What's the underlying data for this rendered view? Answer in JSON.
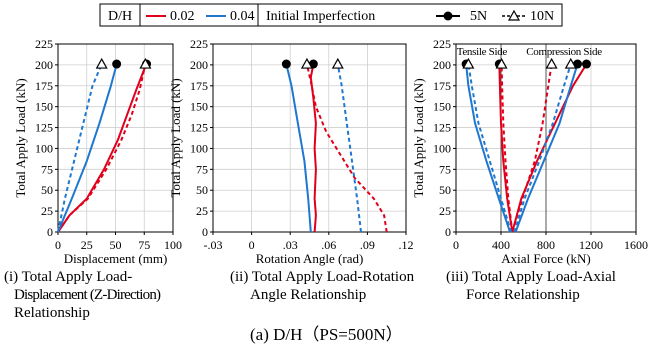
{
  "legend": {
    "dh_label": "D/H",
    "series": [
      {
        "name": "0.02",
        "color": "#e0001b"
      },
      {
        "name": "0.04",
        "color": "#1f77d0"
      }
    ],
    "imperfection_label": "Initial Imperfection",
    "markers": [
      {
        "name": "5N",
        "line": "solid",
        "marker": "filled-circle"
      },
      {
        "name": "10N",
        "line": "dashed",
        "marker": "open-triangle"
      }
    ]
  },
  "panel_titles": [
    [
      "(i) Total Apply Load-",
      "Displacement (Z-Direction)",
      "Relationship"
    ],
    [
      "(ii) Total Apply Load-Rotation",
      "Angle Relationship"
    ],
    [
      "(iii) Total Apply Load-Axial",
      "Force Relationship"
    ]
  ],
  "figure_caption": "(a) D/H（PS=500N）",
  "chart_data": [
    {
      "type": "line",
      "xlabel": "Displacement (mm)",
      "ylabel": "Total Apply Load (kN)",
      "xlim": [
        0,
        100
      ],
      "ylim": [
        0,
        225
      ],
      "xticks": [
        0,
        25,
        50,
        75,
        100
      ],
      "yticks": [
        0,
        25,
        50,
        75,
        100,
        125,
        150,
        175,
        200,
        225
      ],
      "grid": true,
      "vlines": [],
      "annotations": [],
      "series": [
        {
          "name": "0.02",
          "imperfection": "5N",
          "color": "#e0001b",
          "dash": false,
          "marker": "circle",
          "x": [
            0,
            10,
            25,
            40,
            52,
            60,
            68,
            75,
            77
          ],
          "y": [
            0,
            20,
            40,
            75,
            110,
            140,
            170,
            195,
            201
          ]
        },
        {
          "name": "0.02",
          "imperfection": "10N",
          "color": "#e0001b",
          "dash": true,
          "marker": "triangle",
          "x": [
            0,
            10,
            26,
            42,
            55,
            64,
            71,
            75,
            76
          ],
          "y": [
            0,
            20,
            40,
            75,
            110,
            140,
            170,
            195,
            201
          ]
        },
        {
          "name": "0.04",
          "imperfection": "5N",
          "color": "#1f77d0",
          "dash": false,
          "marker": "circle",
          "x": [
            0,
            12,
            25,
            36,
            46,
            51
          ],
          "y": [
            0,
            40,
            85,
            130,
            175,
            201
          ]
        },
        {
          "name": "0.04",
          "imperfection": "10N",
          "color": "#1f77d0",
          "dash": true,
          "marker": "triangle",
          "x": [
            0,
            6,
            14,
            22,
            30,
            38
          ],
          "y": [
            0,
            40,
            85,
            130,
            175,
            201
          ]
        }
      ]
    },
    {
      "type": "line",
      "xlabel": "Rotation Angle (rad)",
      "ylabel": "Total Apply Load (kN)",
      "xlim": [
        -0.03,
        0.12
      ],
      "ylim": [
        0,
        225
      ],
      "xticks": [
        -0.03,
        0,
        0.03,
        0.06,
        0.09,
        0.12
      ],
      "yticks": [
        0,
        25,
        50,
        75,
        100,
        125,
        150,
        175,
        200,
        225
      ],
      "grid": true,
      "vlines": [],
      "annotations": [],
      "series": [
        {
          "name": "0.02",
          "imperfection": "5N",
          "color": "#e0001b",
          "dash": false,
          "marker": "circle",
          "x": [
            0.049,
            0.05,
            0.049,
            0.05,
            0.049,
            0.05,
            0.048,
            0.046,
            0.048
          ],
          "y": [
            0,
            20,
            40,
            75,
            100,
            130,
            160,
            185,
            201
          ]
        },
        {
          "name": "0.02",
          "imperfection": "10N",
          "color": "#e0001b",
          "dash": true,
          "marker": "triangle",
          "x": [
            0.105,
            0.103,
            0.095,
            0.08,
            0.07,
            0.058,
            0.05,
            0.046,
            0.043
          ],
          "y": [
            0,
            20,
            40,
            65,
            90,
            120,
            150,
            180,
            201
          ]
        },
        {
          "name": "0.04",
          "imperfection": "5N",
          "color": "#1f77d0",
          "dash": false,
          "marker": "circle",
          "x": [
            0.046,
            0.044,
            0.041,
            0.036,
            0.031,
            0.027
          ],
          "y": [
            0,
            40,
            85,
            130,
            175,
            201
          ]
        },
        {
          "name": "0.04",
          "imperfection": "10N",
          "color": "#1f77d0",
          "dash": true,
          "marker": "triangle",
          "x": [
            0.085,
            0.082,
            0.078,
            0.074,
            0.07,
            0.067
          ],
          "y": [
            0,
            40,
            85,
            130,
            175,
            201
          ]
        }
      ]
    },
    {
      "type": "line",
      "xlabel": "Axial Force (kN)",
      "ylabel": "Total Apply Load (kN)",
      "xlim": [
        0,
        1600
      ],
      "ylim": [
        0,
        225
      ],
      "xticks": [
        0,
        400,
        800,
        1200,
        1600
      ],
      "yticks": [
        0,
        25,
        50,
        75,
        100,
        125,
        150,
        175,
        200,
        225
      ],
      "grid": true,
      "vlines": [
        400,
        800
      ],
      "annotations": [
        {
          "text": "Tensile Side",
          "x": 230,
          "y": 212
        },
        {
          "text": "Compression Side",
          "x": 960,
          "y": 212
        }
      ],
      "series": [
        {
          "name": "0.02",
          "imperfection": "5N",
          "color": "#e0001b",
          "dash": false,
          "marker": "circle",
          "x": [
            500,
            455,
            420,
            400,
            390,
            385
          ],
          "y": [
            0,
            40,
            85,
            130,
            175,
            201
          ]
        },
        {
          "name": "0.02",
          "imperfection": "5N",
          "color": "#e0001b",
          "dash": false,
          "marker": "circle",
          "x": [
            500,
            580,
            720,
            880,
            1040,
            1160
          ],
          "y": [
            0,
            40,
            85,
            130,
            175,
            201
          ]
        },
        {
          "name": "0.02",
          "imperfection": "10N",
          "color": "#e0001b",
          "dash": true,
          "marker": "triangle",
          "x": [
            500,
            465,
            440,
            420,
            410,
            405
          ],
          "y": [
            0,
            40,
            85,
            130,
            175,
            201
          ]
        },
        {
          "name": "0.02",
          "imperfection": "10N",
          "color": "#e0001b",
          "dash": true,
          "marker": "triangle",
          "x": [
            500,
            590,
            700,
            770,
            820,
            850
          ],
          "y": [
            0,
            40,
            85,
            130,
            175,
            201
          ]
        },
        {
          "name": "0.04",
          "imperfection": "5N",
          "color": "#1f77d0",
          "dash": false,
          "marker": "circle",
          "x": [
            480,
            380,
            270,
            170,
            110,
            90
          ],
          "y": [
            0,
            40,
            85,
            130,
            175,
            201
          ]
        },
        {
          "name": "0.04",
          "imperfection": "5N",
          "color": "#1f77d0",
          "dash": false,
          "marker": "circle",
          "x": [
            530,
            640,
            780,
            920,
            1020,
            1080
          ],
          "y": [
            0,
            40,
            85,
            130,
            175,
            201
          ]
        },
        {
          "name": "0.04",
          "imperfection": "10N",
          "color": "#1f77d0",
          "dash": true,
          "marker": "triangle",
          "x": [
            490,
            400,
            300,
            200,
            140,
            110
          ],
          "y": [
            0,
            40,
            85,
            130,
            175,
            201
          ]
        },
        {
          "name": "0.04",
          "imperfection": "10N",
          "color": "#1f77d0",
          "dash": true,
          "marker": "triangle",
          "x": [
            520,
            610,
            740,
            860,
            960,
            1020
          ],
          "y": [
            0,
            40,
            85,
            130,
            175,
            201
          ]
        }
      ]
    }
  ]
}
